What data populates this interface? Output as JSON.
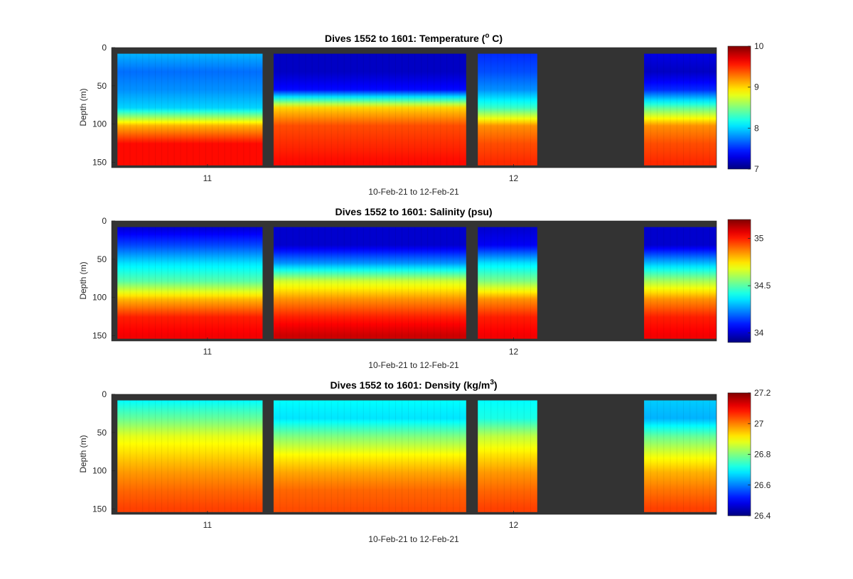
{
  "chart_data": [
    {
      "type": "heatmap",
      "variable": "temperature",
      "title_prefix": "Dives 1552 to 1601: Temperature (",
      "title_sup": "o",
      "title_suffix": " C)",
      "xlabel": "10-Feb-21 to 12-Feb-21",
      "ylabel": "Depth (m)",
      "x_ticks": [
        "11",
        "12"
      ],
      "x_tick_days": [
        11,
        12
      ],
      "xlim_days": [
        10.6869,
        12.6627
      ],
      "ylim": [
        0,
        157
      ],
      "y_ticks": [
        0,
        50,
        100,
        150
      ],
      "clim": [
        7,
        10
      ],
      "colorbar_ticks": [
        10,
        9,
        8,
        7
      ],
      "colormap": "jet",
      "no_data_color": "#333333",
      "profile_values": {
        "depths_m": [
          0,
          25,
          50,
          75,
          100,
          125,
          150
        ],
        "group1_day_10.71_to_11.18": [
          7.9,
          7.7,
          7.8,
          8.0,
          9.1,
          9.6,
          9.6
        ],
        "group2_day_11.22_to_11.84": [
          7.2,
          7.2,
          7.4,
          9.0,
          9.4,
          9.5,
          9.6
        ],
        "group3_day_11.88_to_12.07": [
          7.5,
          7.6,
          7.8,
          8.3,
          9.2,
          9.4,
          9.5
        ],
        "group4_day_12.42_to_12.65": [
          7.3,
          7.2,
          7.5,
          8.4,
          9.2,
          9.4,
          9.5
        ]
      }
    },
    {
      "type": "heatmap",
      "variable": "salinity",
      "title": "Dives 1552 to 1601: Salinity (psu)",
      "xlabel": "10-Feb-21 to 12-Feb-21",
      "ylabel": "Depth (m)",
      "x_ticks": [
        "11",
        "12"
      ],
      "x_tick_days": [
        11,
        12
      ],
      "xlim_days": [
        10.6869,
        12.6627
      ],
      "ylim": [
        0,
        157
      ],
      "y_ticks": [
        0,
        50,
        100,
        150
      ],
      "clim": [
        33.9,
        35.2
      ],
      "colorbar_ticks": [
        35,
        34.5,
        34
      ],
      "colormap": "jet",
      "no_data_color": "#333333",
      "profile_values": {
        "depths_m": [
          0,
          25,
          50,
          75,
          100,
          125,
          150
        ],
        "group1_day_10.71_to_11.18": [
          34.0,
          34.15,
          34.35,
          34.5,
          34.8,
          35.0,
          35.05
        ],
        "group2_day_11.22_to_11.84": [
          34.0,
          34.0,
          34.25,
          34.65,
          34.85,
          35.0,
          35.1
        ],
        "group3_day_11.88_to_12.07": [
          34.0,
          34.05,
          34.35,
          34.55,
          34.85,
          35.0,
          35.05
        ],
        "group4_day_12.42_to_12.65": [
          34.0,
          34.0,
          34.3,
          34.6,
          34.85,
          35.0,
          35.05
        ]
      }
    },
    {
      "type": "heatmap",
      "variable": "density",
      "title_prefix": "Dives 1552 to 1601: Density (kg/m",
      "title_sup": "3",
      "title_suffix": ")",
      "xlabel": "10-Feb-21 to 12-Feb-21",
      "ylabel": "Depth (m)",
      "x_ticks": [
        "11",
        "12"
      ],
      "x_tick_days": [
        11,
        12
      ],
      "xlim_days": [
        10.6869,
        12.6627
      ],
      "ylim": [
        0,
        157
      ],
      "y_ticks": [
        0,
        50,
        100,
        150
      ],
      "clim": [
        26.4,
        27.2
      ],
      "colorbar_ticks": [
        27.2,
        27,
        26.8,
        26.6,
        26.4
      ],
      "colormap": "jet",
      "no_data_color": "#333333",
      "profile_values": {
        "depths_m": [
          0,
          25,
          50,
          75,
          100,
          125,
          150
        ],
        "group1_day_10.71_to_11.18": [
          26.7,
          26.78,
          26.88,
          26.93,
          26.98,
          27.02,
          27.05
        ],
        "group2_day_11.22_to_11.84": [
          26.7,
          26.68,
          26.8,
          26.9,
          26.97,
          27.02,
          27.04
        ],
        "group3_day_11.88_to_12.07": [
          26.7,
          26.72,
          26.85,
          26.92,
          26.98,
          27.02,
          27.05
        ],
        "group4_day_12.42_to_12.65": [
          26.66,
          26.64,
          26.78,
          26.88,
          26.96,
          27.01,
          27.05
        ]
      }
    }
  ]
}
